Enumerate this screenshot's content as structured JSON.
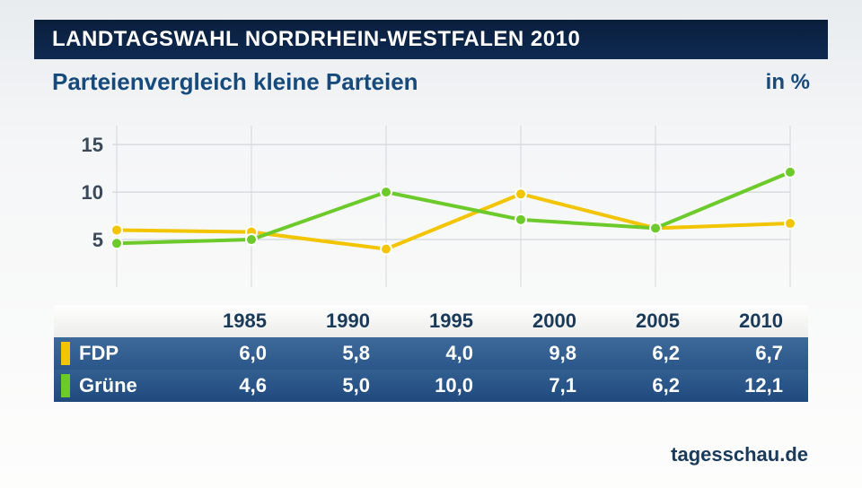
{
  "header": {
    "title": "LANDTAGSWAHL NORDRHEIN-WESTFALEN 2010",
    "subtitle": "Parteienvergleich kleine Parteien",
    "unit": "in %"
  },
  "chart": {
    "type": "line",
    "x_categories": [
      "1985",
      "1990",
      "1995",
      "2000",
      "2005",
      "2010"
    ],
    "y_ticks": [
      5,
      10,
      15
    ],
    "ylim": [
      0,
      17
    ],
    "background_color": "#f5f6f5",
    "grid_color": "#c9cfd3",
    "y_label_color": "#3a4a5a",
    "y_label_fontsize": 22,
    "line_width": 4,
    "marker_radius": 6,
    "series": [
      {
        "name": "FDP",
        "color": "#f2c500",
        "values": [
          6.0,
          5.8,
          4.0,
          9.8,
          6.2,
          6.7
        ],
        "display_values": [
          "6,0",
          "5,8",
          "4,0",
          "9,8",
          "6,2",
          "6,7"
        ]
      },
      {
        "name": "Grüne",
        "color": "#6cca2a",
        "values": [
          4.6,
          5.0,
          10.0,
          7.1,
          6.2,
          12.1
        ],
        "display_values": [
          "4,6",
          "5,0",
          "10,0",
          "7,1",
          "6,2",
          "12,1"
        ]
      }
    ]
  },
  "table": {
    "header_bg": "linear-gradient(180deg,#ffffff,#ececea)",
    "row_colors": [
      "#3e6a9a",
      "#2a568a"
    ],
    "text_color": "#ffffff",
    "header_text_color": "#1a3a5a",
    "fontsize": 22
  },
  "source": "tagesschau.de"
}
